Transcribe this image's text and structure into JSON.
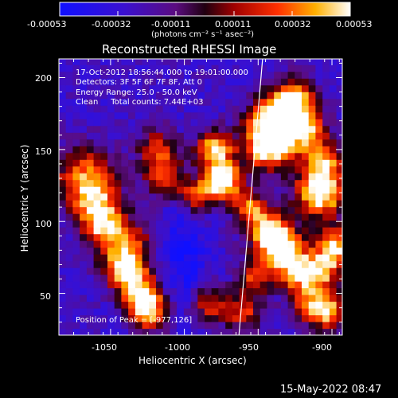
{
  "chart_data": {
    "type": "heatmap",
    "title": "Reconstructed RHESSI Image",
    "colorbar": {
      "ticks": [
        "-0.00053",
        "-0.00032",
        "-0.00011",
        "0.00011",
        "0.00032",
        "0.00053"
      ],
      "min": -0.00053,
      "max": 0.00053
    },
    "xlabel": "Heliocentric X (arcsec)",
    "ylabel": "Heliocentric Y (arcsec)",
    "xlim": [
      -1085,
      -893
    ],
    "ylim": [
      21,
      213
    ],
    "x_ticks": [
      "-1050",
      "-1000",
      "-950",
      "-900"
    ],
    "y_ticks": [
      "50",
      "100",
      "150",
      "200"
    ],
    "limb_line": {
      "x": [
        -947,
        -963
      ],
      "y": [
        213,
        21
      ]
    },
    "peak_position": [
      -977,
      126
    ],
    "annotations": {
      "time_range": "17-Oct-2012 18:56:44.000 to 19:01:00.000",
      "detectors": "Detectors: 3F 5F 6F 7F 8F, Att 0",
      "energy_range": "Energy Range: 25.0 - 50.0 keV",
      "method": "Clean     Total counts: 7.44E+03",
      "peak": "Position of Peak = [-977,126]"
    },
    "colormap": "rhessi-blue-red-yellow-white",
    "colors": {
      "background": "#000000",
      "text": "#ffffff",
      "limb": "#ffffff"
    }
  },
  "colorbar_units": "(photons cm⁻² s⁻¹ asec⁻²)",
  "footer_date": "15-May-2022 08:47"
}
